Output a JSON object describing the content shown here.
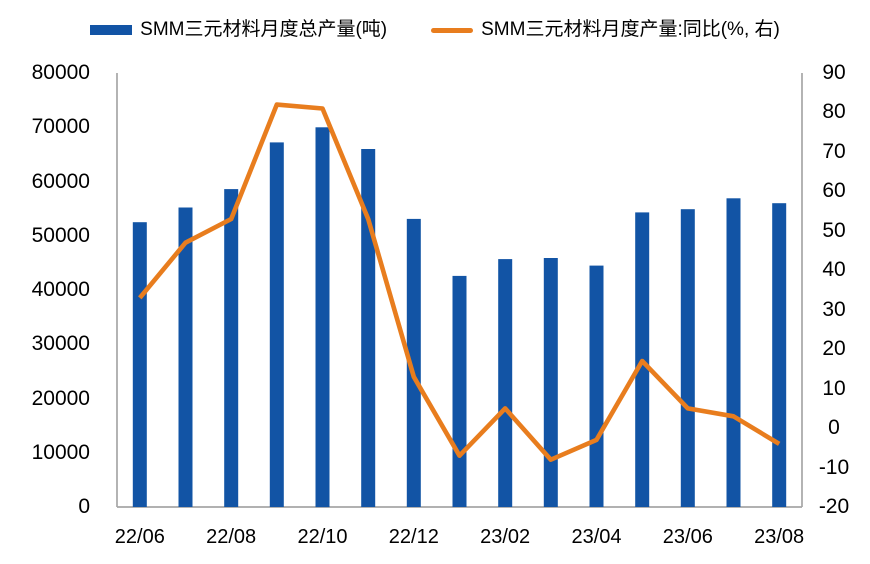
{
  "chart_data": {
    "type": "bar",
    "subtype": "combo-bar-line",
    "title": "",
    "categories": [
      "22/06",
      "22/07",
      "22/08",
      "22/09",
      "22/10",
      "22/11",
      "22/12",
      "23/01",
      "23/02",
      "23/03",
      "23/04",
      "23/05",
      "23/06",
      "23/07",
      "23/08"
    ],
    "series": [
      {
        "name": "SMM三元材料月度总产量(吨)",
        "type": "bar",
        "axis": "left",
        "color": "#1254A5",
        "values": [
          52500,
          55200,
          58600,
          67200,
          70000,
          66000,
          53100,
          42600,
          45700,
          45900,
          44500,
          54300,
          54900,
          56900,
          56000
        ]
      },
      {
        "name": "SMM三元材料月度产量:同比(%, 右)",
        "type": "line",
        "axis": "right",
        "color": "#E87D1E",
        "values": [
          33,
          47,
          53,
          82,
          81,
          53,
          13,
          -7,
          5,
          -8,
          -3,
          17,
          5,
          3,
          -4
        ]
      }
    ],
    "left_axis": {
      "min": 0,
      "max": 80000,
      "tick_step": 10000,
      "ticks": [
        "80000",
        "70000",
        "60000",
        "50000",
        "40000",
        "30000",
        "20000",
        "10000",
        "0"
      ]
    },
    "right_axis": {
      "min": -20,
      "max": 90,
      "tick_step": 10,
      "ticks": [
        "90",
        "80",
        "70",
        "60",
        "50",
        "40",
        "30",
        "20",
        "10",
        "0",
        "-10",
        "-20"
      ]
    },
    "x_axis": {
      "tick_labels": [
        "22/06",
        "22/08",
        "22/10",
        "22/12",
        "23/02",
        "23/04",
        "23/06",
        "23/08"
      ]
    },
    "grid": false,
    "legend_position": "top",
    "axis_line_color": "#A6A6A6",
    "background": "#FFFFFF",
    "text_color": "#000000"
  }
}
